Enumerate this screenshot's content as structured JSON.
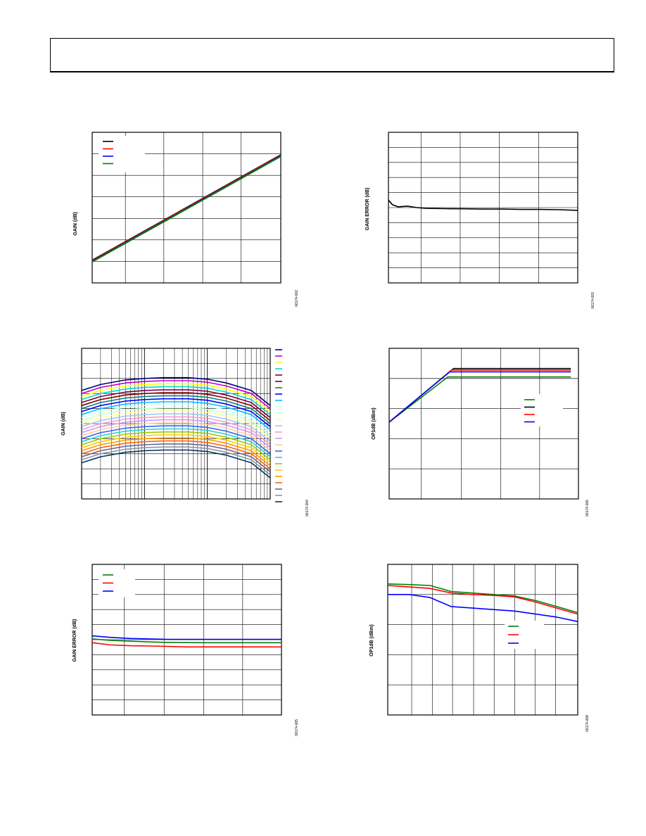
{
  "page": {
    "header_text": ""
  },
  "charts": {
    "c1": {
      "ylabel": "GAIN (dB)",
      "fig": "06174-002"
    },
    "c2": {
      "ylabel": "GAIN ERROR (dB)",
      "fig": "06174-003"
    },
    "c3": {
      "ylabel": "GAIN (dB)",
      "fig": "06174-004"
    },
    "c4": {
      "ylabel": "OP1dB (dBm)",
      "fig": "06174-006"
    },
    "c5": {
      "ylabel": "GAIN ERROR (dB)",
      "fig": "06174-005"
    },
    "c6": {
      "ylabel": "OP1dB (dBm)",
      "fig": "06174-008"
    }
  },
  "chart_data": [
    {
      "id": "c1",
      "type": "line",
      "ylabel": "GAIN (dB)",
      "xlim": [
        0,
        5
      ],
      "ylim": [
        0,
        7
      ],
      "grid": true,
      "legend_placement": "top-left",
      "series": [
        {
          "color": "#000000",
          "x": [
            0,
            5
          ],
          "y": [
            1.05,
            5.95
          ]
        },
        {
          "color": "#ff0000",
          "x": [
            0,
            5
          ],
          "y": [
            1.03,
            5.93
          ]
        },
        {
          "color": "#0000ff",
          "x": [
            0,
            5
          ],
          "y": [
            1.0,
            5.9
          ]
        },
        {
          "color": "#008000",
          "x": [
            0,
            5
          ],
          "y": [
            0.98,
            5.88
          ]
        }
      ]
    },
    {
      "id": "c2",
      "type": "line",
      "ylabel": "GAIN ERROR (dB)",
      "xlim": [
        0,
        5
      ],
      "ylim": [
        0,
        10
      ],
      "grid": true,
      "series": [
        {
          "color": "#000000",
          "x": [
            0,
            0.1,
            0.25,
            0.5,
            0.75,
            1.0,
            1.5,
            2.0,
            2.5,
            3.0,
            3.5,
            4.0,
            4.5,
            5.0
          ],
          "y": [
            5.5,
            5.2,
            5.05,
            5.1,
            5.0,
            4.95,
            4.93,
            4.92,
            4.9,
            4.9,
            4.88,
            4.88,
            4.86,
            4.82
          ]
        }
      ]
    },
    {
      "id": "c3",
      "type": "line",
      "ylabel": "GAIN (dB)",
      "xscale": "log",
      "xlim": [
        1,
        1000
      ],
      "ylim": [
        0,
        10
      ],
      "grid": true,
      "legend_placement": "right",
      "series": [
        {
          "color": "#000080",
          "offset": 0
        },
        {
          "color": "#c000c0",
          "offset": 1
        },
        {
          "color": "#ffff00",
          "offset": 2
        },
        {
          "color": "#00d8d8",
          "offset": 3
        },
        {
          "color": "#800040",
          "offset": 4
        },
        {
          "color": "#800000",
          "offset": 5
        },
        {
          "color": "#008080",
          "offset": 6
        },
        {
          "color": "#0000ff",
          "offset": 7
        },
        {
          "color": "#00c0ff",
          "offset": 8
        },
        {
          "color": "#ccffff",
          "offset": 9
        },
        {
          "color": "#ccffcc",
          "offset": 10
        },
        {
          "color": "#ffff99",
          "offset": 11
        },
        {
          "color": "#99ccff",
          "offset": 12
        },
        {
          "color": "#ff99cc",
          "offset": 13
        },
        {
          "color": "#cc99ff",
          "offset": 14
        },
        {
          "color": "#ffcc99",
          "offset": 15
        },
        {
          "color": "#3366ff",
          "offset": 16
        },
        {
          "color": "#33cccc",
          "offset": 17
        },
        {
          "color": "#99cc00",
          "offset": 18
        },
        {
          "color": "#ffcc00",
          "offset": 19
        },
        {
          "color": "#ff9900",
          "offset": 20
        },
        {
          "color": "#ff6600",
          "offset": 21
        },
        {
          "color": "#666699",
          "offset": 22
        },
        {
          "color": "#969696",
          "offset": 23
        },
        {
          "color": "#003366",
          "offset": 24
        }
      ],
      "shape": {
        "x": [
          1,
          2,
          5,
          10,
          20,
          50,
          100,
          200,
          500,
          1000
        ],
        "top_y": [
          7.2,
          7.6,
          7.9,
          8.0,
          8.05,
          8.05,
          7.95,
          7.7,
          7.2,
          6.2
        ],
        "step": 0.134
      }
    },
    {
      "id": "c4",
      "type": "line",
      "ylabel": "OP1dB (dBm)",
      "xlim": [
        0,
        5
      ],
      "ylim": [
        0,
        5
      ],
      "grid": true,
      "legend_placement": "right",
      "series": [
        {
          "color": "#008000",
          "x": [
            0,
            1.55,
            4.8
          ],
          "y": [
            2.55,
            4.05,
            4.05
          ]
        },
        {
          "color": "#000000",
          "x": [
            0,
            1.7,
            4.8
          ],
          "y": [
            2.55,
            4.33,
            4.33
          ]
        },
        {
          "color": "#ff0000",
          "x": [
            0,
            1.65,
            4.8
          ],
          "y": [
            2.55,
            4.28,
            4.28
          ]
        },
        {
          "color": "#0000ff",
          "x": [
            0,
            1.6,
            4.8
          ],
          "y": [
            2.55,
            4.22,
            4.22
          ]
        }
      ]
    },
    {
      "id": "c5",
      "type": "line",
      "ylabel": "GAIN ERROR (dB)",
      "xlim": [
        0,
        5
      ],
      "ylim": [
        0,
        10
      ],
      "grid": true,
      "legend_placement": "top-left",
      "series": [
        {
          "color": "#008000",
          "x": [
            0,
            0.5,
            1.0,
            1.5,
            2.0,
            3.0,
            4.0,
            5.0
          ],
          "y": [
            5.05,
            4.95,
            4.9,
            4.85,
            4.82,
            4.8,
            4.8,
            4.8
          ]
        },
        {
          "color": "#ff0000",
          "x": [
            0,
            0.5,
            1.0,
            1.5,
            2.0,
            2.5,
            3.0,
            4.0,
            5.0
          ],
          "y": [
            4.8,
            4.65,
            4.6,
            4.58,
            4.55,
            4.52,
            4.52,
            4.52,
            4.52
          ]
        },
        {
          "color": "#0000ff",
          "x": [
            0,
            0.5,
            1.0,
            1.5,
            2.0,
            3.0,
            4.0,
            5.0
          ],
          "y": [
            5.25,
            5.15,
            5.08,
            5.05,
            5.02,
            5.02,
            5.02,
            5.02
          ]
        }
      ]
    },
    {
      "id": "c6",
      "type": "line",
      "ylabel": "OP1dB (dBm)",
      "xlim": [
        0,
        9
      ],
      "ylim": [
        0,
        5
      ],
      "grid": true,
      "legend_placement": "right",
      "series": [
        {
          "color": "#008000",
          "x": [
            0,
            1,
            2,
            3,
            4,
            5,
            6,
            7,
            8,
            9
          ],
          "y": [
            4.35,
            4.33,
            4.3,
            4.1,
            4.05,
            4.0,
            3.95,
            3.8,
            3.6,
            3.4
          ]
        },
        {
          "color": "#ff0000",
          "x": [
            0,
            1,
            2,
            3,
            4,
            5,
            6,
            7,
            8,
            9
          ],
          "y": [
            4.3,
            4.25,
            4.2,
            4.05,
            4.0,
            3.97,
            3.92,
            3.75,
            3.55,
            3.35
          ]
        },
        {
          "color": "#0000ff",
          "x": [
            0,
            1,
            2,
            3,
            4,
            5,
            6,
            7,
            8,
            9
          ],
          "y": [
            4.0,
            4.0,
            3.9,
            3.6,
            3.55,
            3.5,
            3.45,
            3.35,
            3.25,
            3.1
          ]
        }
      ]
    }
  ]
}
